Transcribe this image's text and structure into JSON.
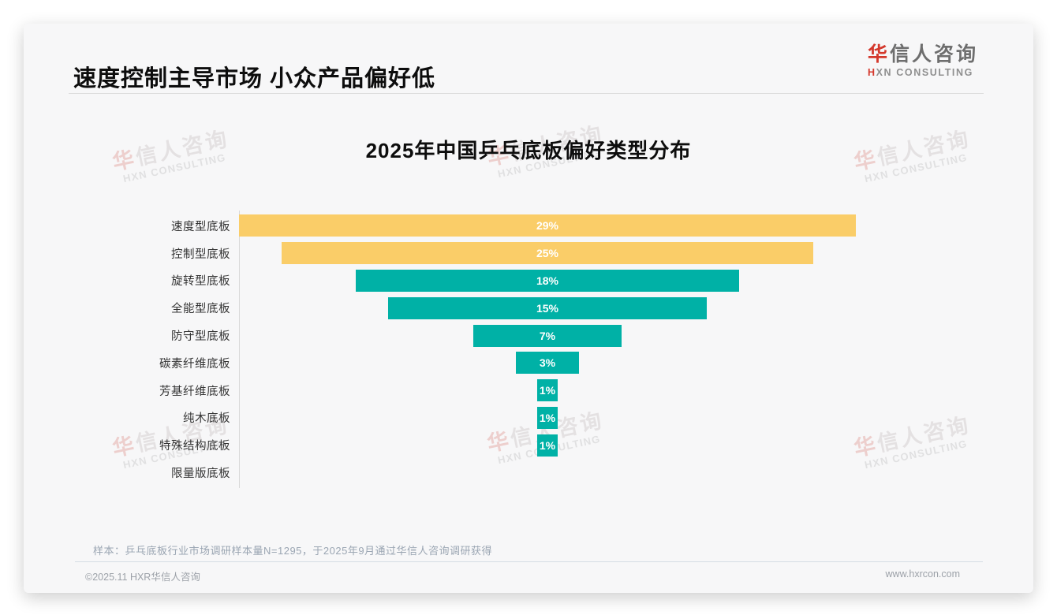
{
  "page": {
    "title": "速度控制主导市场 小众产品偏好低",
    "logo": {
      "cn_accent": "华",
      "cn_rest": "信人咨询",
      "en_accent": "H",
      "en_rest": "XN CONSULTING"
    },
    "sample_note": "样本：乒乓底板行业市场调研样本量N=1295，于2025年9月通过华信人咨询调研获得",
    "footer": {
      "copyright": "©2025.11 HXR华信人咨询",
      "website": "www.hxrcon.com"
    }
  },
  "watermark": {
    "cn_accent": "华",
    "cn_rest": "信人咨询",
    "en": "HXN CONSULTING"
  },
  "chart_data": {
    "type": "bar",
    "subtype": "centered-horizontal-funnel",
    "title": "2025年中国乒乓底板偏好类型分布",
    "categories": [
      "速度型底板",
      "控制型底板",
      "旋转型底板",
      "全能型底板",
      "防守型底板",
      "碳素纤维底板",
      "芳基纤维底板",
      "纯木底板",
      "特殊结构底板",
      "限量版底板"
    ],
    "values": [
      29,
      25,
      18,
      15,
      7,
      3,
      1,
      1,
      1,
      0
    ],
    "data_labels": [
      "29%",
      "25%",
      "18%",
      "15%",
      "7%",
      "3%",
      "1%",
      "1%",
      "1%",
      ""
    ],
    "series_colors": [
      "#FACD68",
      "#FACD68",
      "#00B1A6",
      "#00B1A6",
      "#00B1A6",
      "#00B1A6",
      "#00B1A6",
      "#00B1A6",
      "#00B1A6",
      "#00B1A6"
    ],
    "value_unit": "%",
    "xlim": [
      0,
      29
    ],
    "xlabel": "",
    "ylabel": "",
    "grid": "off",
    "legend": "none",
    "label_color": "#ffffff"
  }
}
